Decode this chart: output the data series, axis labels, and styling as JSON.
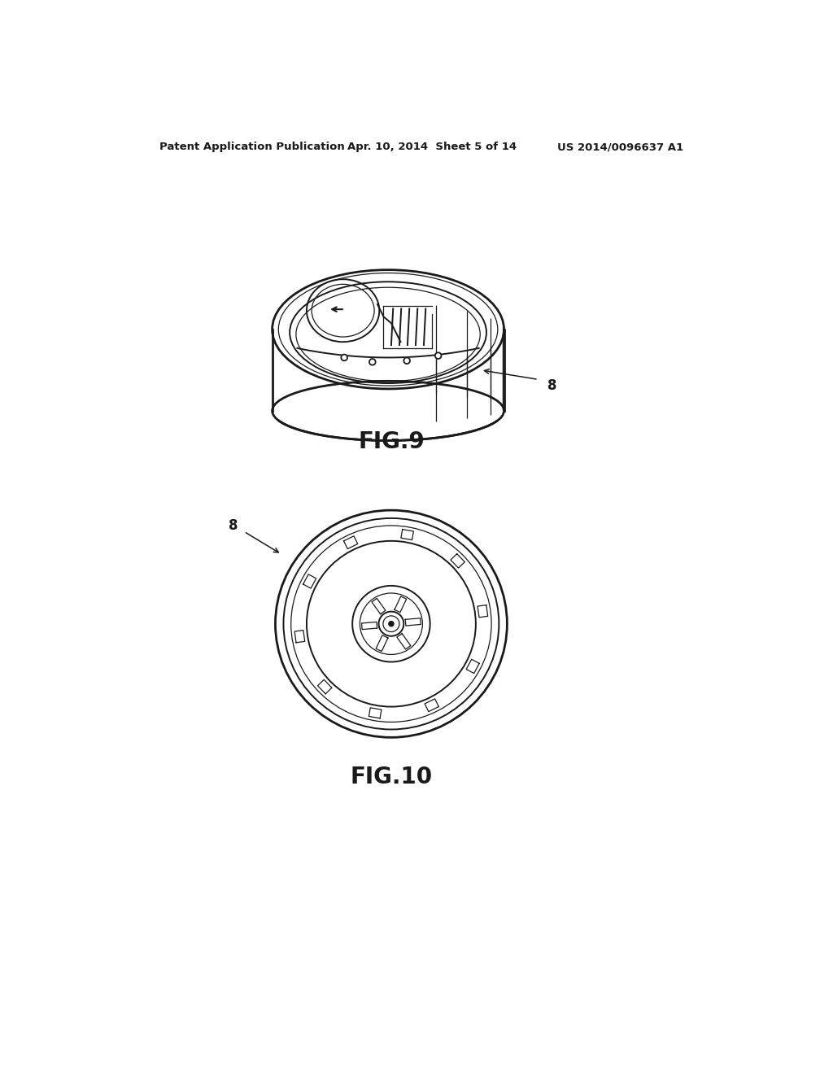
{
  "header_left": "Patent Application Publication",
  "header_mid": "Apr. 10, 2014  Sheet 5 of 14",
  "header_right": "US 2014/0096637 A1",
  "fig9_label": "FIG.9",
  "fig10_label": "FIG.10",
  "ref_num": "8",
  "bg_color": "#ffffff",
  "line_color": "#1a1a1a",
  "header_fontsize": 9.5,
  "fig_label_fontsize": 20,
  "ref_fontsize": 12
}
